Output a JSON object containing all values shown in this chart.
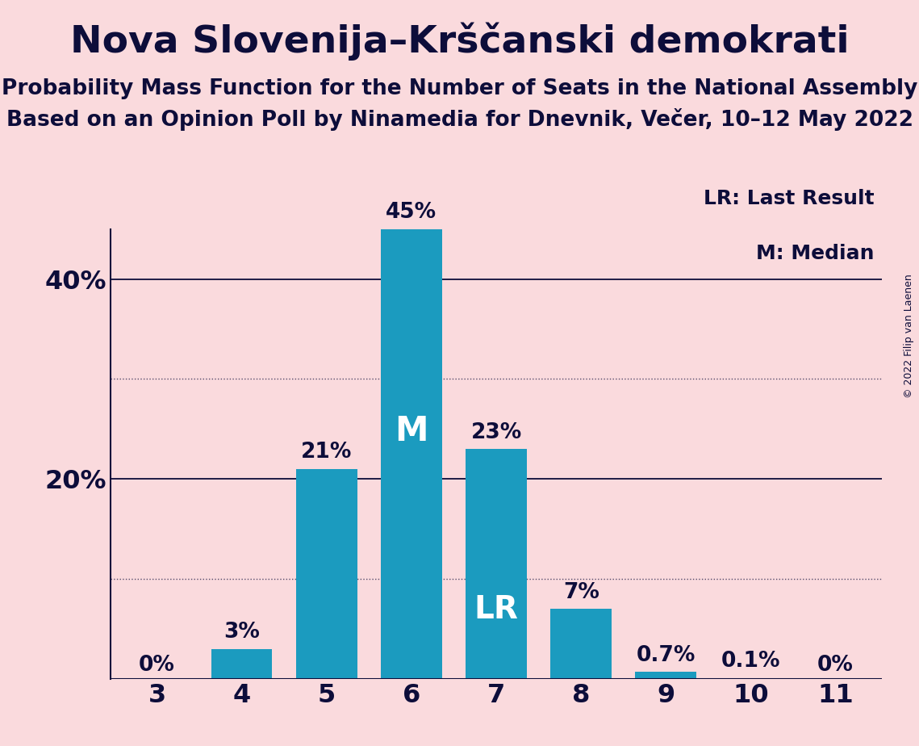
{
  "title": "Nova Slovenija–Krščanski demokrati",
  "subtitle1": "Probability Mass Function for the Number of Seats in the National Assembly",
  "subtitle2": "Based on an Opinion Poll by Ninamedia for Dnevnik, Večer, 10–12 May 2022",
  "copyright": "© 2022 Filip van Laenen",
  "categories": [
    3,
    4,
    5,
    6,
    7,
    8,
    9,
    10,
    11
  ],
  "values": [
    0.0,
    3.0,
    21.0,
    45.0,
    23.0,
    7.0,
    0.7,
    0.1,
    0.0
  ],
  "bar_labels": [
    "0%",
    "3%",
    "21%",
    "45%",
    "23%",
    "7%",
    "0.7%",
    "0.1%",
    "0%"
  ],
  "bar_color": "#1b9bbf",
  "background_color": "#fadadd",
  "text_color": "#0d0d3a",
  "title_fontsize": 34,
  "subtitle_fontsize": 19,
  "label_fontsize": 19,
  "tick_fontsize": 23,
  "ytick_labels": [
    "20%",
    "40%"
  ],
  "ytick_values": [
    20,
    40
  ],
  "ylim": [
    0,
    50
  ],
  "solid_gridlines": [
    20,
    40
  ],
  "dotted_gridlines": [
    10,
    30
  ],
  "median_bar": 6,
  "lr_bar": 7,
  "legend_lr": "LR: Last Result",
  "legend_m": "M: Median",
  "bar_label_color_inside": "#ffffff",
  "bar_label_color_outside": "#0d0d3a",
  "m_fontsize": 30,
  "lr_fontsize": 28
}
